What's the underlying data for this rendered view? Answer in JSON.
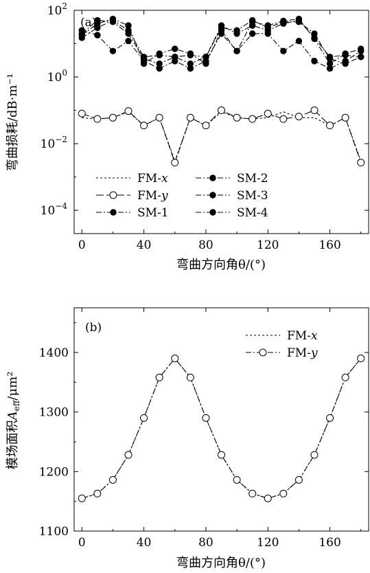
{
  "chart_data": [
    {
      "type": "line",
      "panel_label": "(a)",
      "xlabel": "弯曲方向角θ/(°)",
      "ylabel": "弯曲损耗/dB·m⁻¹",
      "ylog": true,
      "xlim": [
        -5,
        185
      ],
      "ylim": [
        2e-05,
        100
      ],
      "xticks": [
        0,
        40,
        80,
        120,
        160
      ],
      "yticks": [
        {
          "value": 100,
          "base": "10",
          "exp": "2"
        },
        {
          "value": 1,
          "base": "10",
          "exp": "0"
        },
        {
          "value": 0.01,
          "base": "10",
          "exp": "−2"
        },
        {
          "value": 0.0001,
          "base": "10",
          "exp": "−4"
        }
      ],
      "legend": {
        "position": "lower-left",
        "columns": 2
      },
      "x": [
        0,
        10,
        20,
        30,
        40,
        50,
        60,
        70,
        80,
        90,
        100,
        110,
        120,
        130,
        140,
        150,
        160,
        170,
        180
      ],
      "series": [
        {
          "name": "FM-",
          "name_var": "x",
          "marker": "none",
          "dash": "short",
          "values": [
            0.06,
            0.055,
            0.06,
            0.09,
            0.035,
            0.06,
            0.003,
            0.06,
            0.035,
            0.09,
            0.06,
            0.055,
            0.06,
            0.09,
            0.06,
            0.06,
            0.035,
            0.06,
            0.003
          ]
        },
        {
          "name": "FM-",
          "name_var": "y",
          "marker": "open",
          "dash": "long",
          "values": [
            0.08,
            0.055,
            0.06,
            0.095,
            0.035,
            0.06,
            0.0027,
            0.06,
            0.035,
            0.1,
            0.06,
            0.055,
            0.08,
            0.055,
            0.065,
            0.1,
            0.035,
            0.06,
            0.0027
          ]
        },
        {
          "name": "SM-1",
          "marker": "filled",
          "dash": "dashdot",
          "values": [
            25,
            18,
            6,
            12,
            3,
            1.8,
            3,
            1.8,
            3,
            20,
            6,
            20,
            20,
            6,
            12,
            3,
            1.8,
            3,
            6
          ]
        },
        {
          "name": "SM-2",
          "marker": "filled",
          "dash": "dashdot",
          "values": [
            15,
            30,
            50,
            25,
            4,
            4.5,
            4,
            4.5,
            4,
            35,
            20,
            35,
            25,
            40,
            50,
            15,
            4,
            4.5,
            4
          ]
        },
        {
          "name": "SM-3",
          "marker": "filled",
          "dash": "dashdot",
          "values": [
            18,
            40,
            55,
            35,
            2.5,
            5,
            7,
            5,
            2.5,
            25,
            6,
            45,
            35,
            48,
            55,
            14,
            2.5,
            5,
            7
          ]
        },
        {
          "name": "SM-4",
          "marker": "filled",
          "dash": "dashdot",
          "values": [
            20,
            50,
            45,
            20,
            3.5,
            2.5,
            4,
            2.5,
            4,
            30,
            25,
            50,
            30,
            45,
            45,
            20,
            3.5,
            2.5,
            4
          ]
        }
      ]
    },
    {
      "type": "line",
      "panel_label": "(b)",
      "xlabel": "弯曲方向角θ/(°)",
      "ylabel_prefix": "模场面积",
      "ylabel_var": "A",
      "ylabel_sub": "eff",
      "ylabel_unit": "/μm²",
      "xlim": [
        -5,
        185
      ],
      "ylim": [
        1100,
        1475
      ],
      "xticks": [
        0,
        40,
        80,
        120,
        160
      ],
      "yticks": [
        1100,
        1200,
        1300,
        1400
      ],
      "legend": {
        "position": "top-right",
        "columns": 1
      },
      "x": [
        0,
        10,
        20,
        30,
        40,
        50,
        60,
        70,
        80,
        90,
        100,
        110,
        120,
        130,
        140,
        150,
        160,
        170,
        180
      ],
      "series": [
        {
          "name": "FM-",
          "name_var": "x",
          "marker": "none",
          "dash": "short",
          "values": [
            1155,
            1163,
            1186,
            1228,
            1290,
            1358,
            1390,
            1358,
            1290,
            1228,
            1186,
            1163,
            1155,
            1163,
            1186,
            1228,
            1290,
            1358,
            1390
          ]
        },
        {
          "name": "FM-",
          "name_var": "y",
          "marker": "open",
          "dash": "dashdot",
          "values": [
            1155,
            1163,
            1186,
            1228,
            1290,
            1358,
            1390,
            1358,
            1290,
            1228,
            1186,
            1163,
            1155,
            1163,
            1186,
            1228,
            1290,
            1358,
            1390
          ]
        }
      ]
    }
  ]
}
